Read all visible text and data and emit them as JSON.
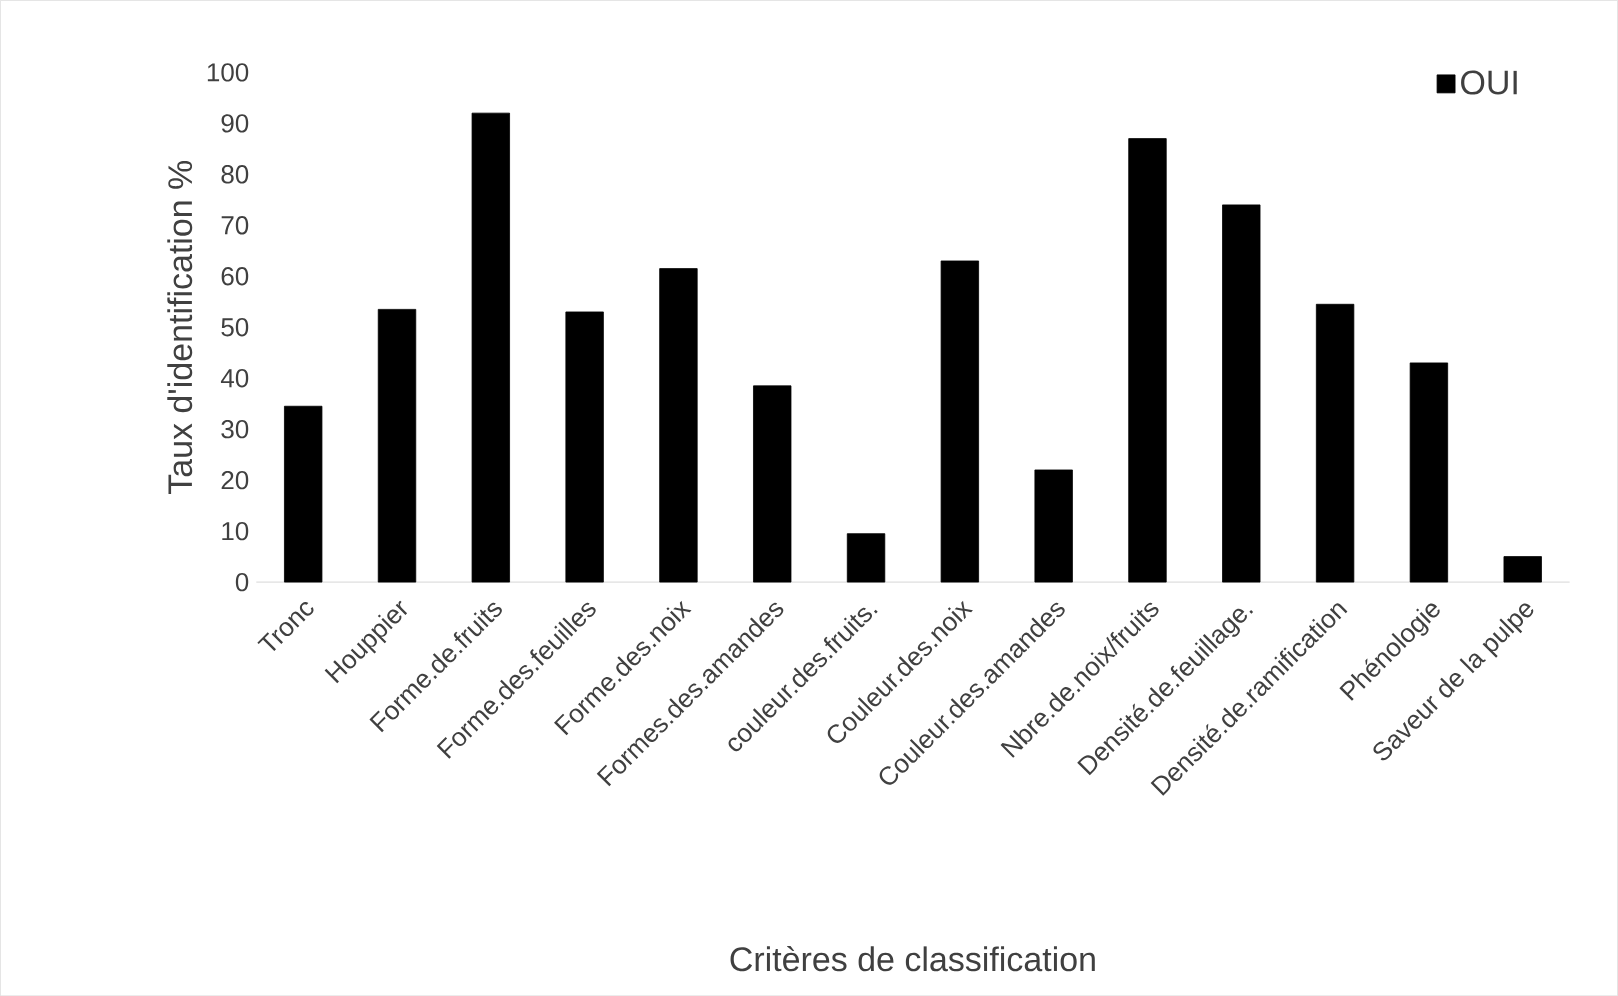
{
  "chart_data": {
    "type": "bar",
    "xlabel": "Critères de classification",
    "ylabel": "Taux d'identification %",
    "categories": [
      "Tronc",
      "Houppier",
      "Forme.de.fruits",
      "Forme.des.feuilles",
      "Forme.des.noix",
      "Formes.des.amandes",
      "couleur.des.fruits.",
      "Couleur.des.noix",
      "Couleur.des.amandes",
      "Nbre.de.noix/fruits",
      "Densité.de.feuillage.",
      "Densité.de.ramification",
      "Phénologie",
      "Saveur de la pulpe"
    ],
    "series": [
      {
        "name": "OUI",
        "color": "#000000",
        "values": [
          34.5,
          53.5,
          92,
          53,
          61.5,
          38.5,
          9.5,
          63,
          22,
          87,
          74,
          54.5,
          43,
          5
        ]
      }
    ],
    "ylim": [
      0,
      100
    ],
    "yticks": [
      0,
      10,
      20,
      30,
      40,
      50,
      60,
      70,
      80,
      90,
      100
    ],
    "grid": false,
    "legend": "top right"
  }
}
